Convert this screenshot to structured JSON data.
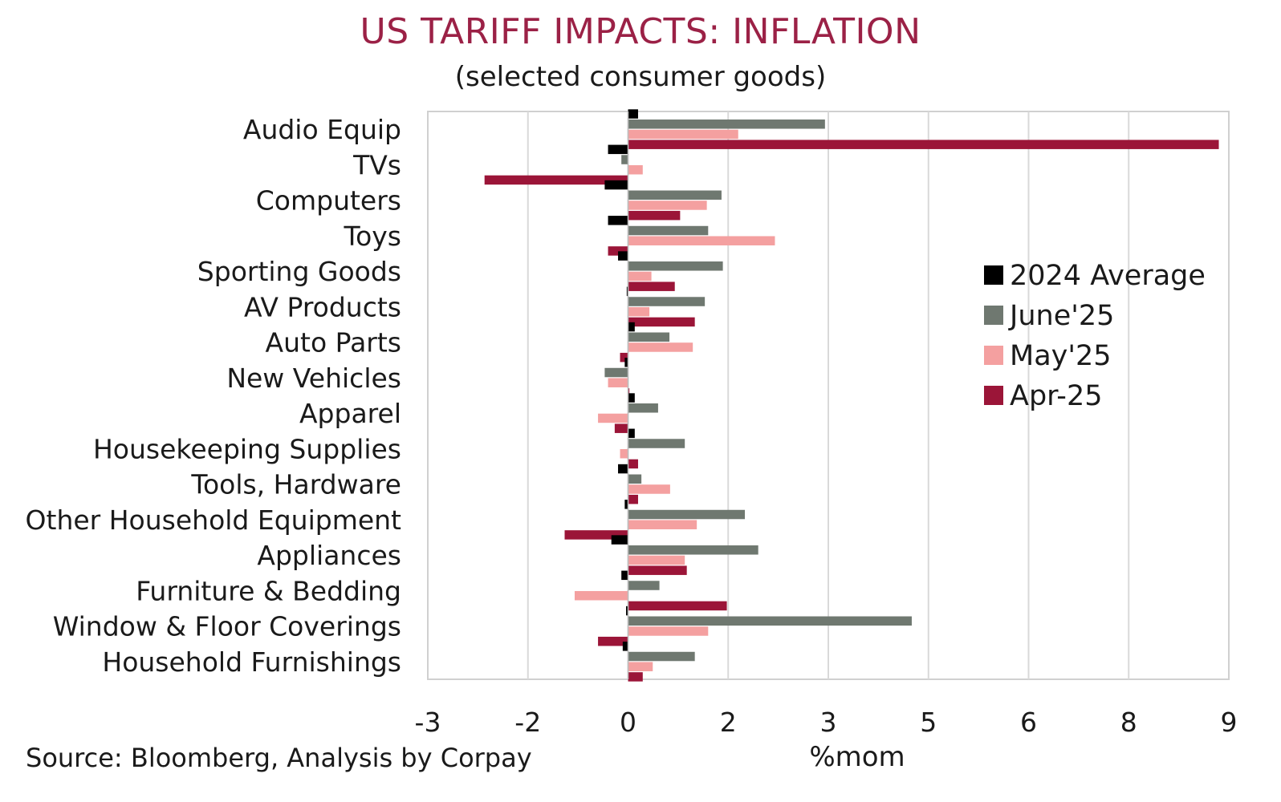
{
  "title": "US TARIFF IMPACTS: INFLATION",
  "subtitle": "(selected consumer goods)",
  "source": "Source: Bloomberg, Analysis by Corpay",
  "colors": {
    "2024 Average": "#000000",
    "June'25": "#6f7870",
    "May'25": "#f4a0a0",
    "Apr-25": "#9b1538",
    "title": "#9b2146",
    "grid": "#d9d9d9"
  },
  "chart_data": {
    "type": "bar",
    "orientation": "horizontal",
    "title": "US TARIFF IMPACTS: INFLATION",
    "subtitle": "(selected consumer goods)",
    "xlabel": "%mom",
    "ylabel": "",
    "xlim": [
      -3,
      9
    ],
    "x_ticks": [
      "-3",
      "-2",
      "0",
      "2",
      "3",
      "5",
      "6",
      "8",
      "9"
    ],
    "grid": true,
    "legend_position": "right",
    "categories": [
      "Audio Equip",
      "TVs",
      "Computers",
      "Toys",
      "Sporting Goods",
      "AV Products",
      "Auto Parts",
      "New Vehicles",
      "Apparel",
      "Housekeeping Supplies",
      "Tools, Hardware",
      "Other Household Equipment",
      "Appliances",
      "Furniture & Bedding",
      "Window & Floor Coverings",
      "Household Furnishings"
    ],
    "series": [
      {
        "name": "2024 Average",
        "values": [
          0.15,
          -0.3,
          -0.35,
          -0.3,
          -0.15,
          -0.02,
          0.1,
          -0.05,
          0.1,
          0.1,
          -0.15,
          -0.05,
          -0.25,
          -0.1,
          -0.03,
          -0.08
        ]
      },
      {
        "name": "June'25",
        "values": [
          2.95,
          -0.1,
          1.4,
          1.2,
          1.42,
          1.15,
          0.62,
          -0.35,
          0.45,
          0.85,
          0.2,
          1.75,
          1.95,
          0.47,
          4.25,
          1.0
        ]
      },
      {
        "name": "May'25",
        "values": [
          1.65,
          0.22,
          1.18,
          2.2,
          0.35,
          0.32,
          0.97,
          -0.3,
          -0.45,
          -0.12,
          0.63,
          1.03,
          0.85,
          -0.8,
          1.2,
          0.37
        ]
      },
      {
        "name": "Apr-25",
        "values": [
          8.85,
          -2.15,
          0.78,
          -0.3,
          0.7,
          1.0,
          -0.12,
          0.02,
          -0.2,
          0.15,
          0.15,
          -0.95,
          0.88,
          1.48,
          -0.45,
          0.22
        ]
      }
    ]
  }
}
